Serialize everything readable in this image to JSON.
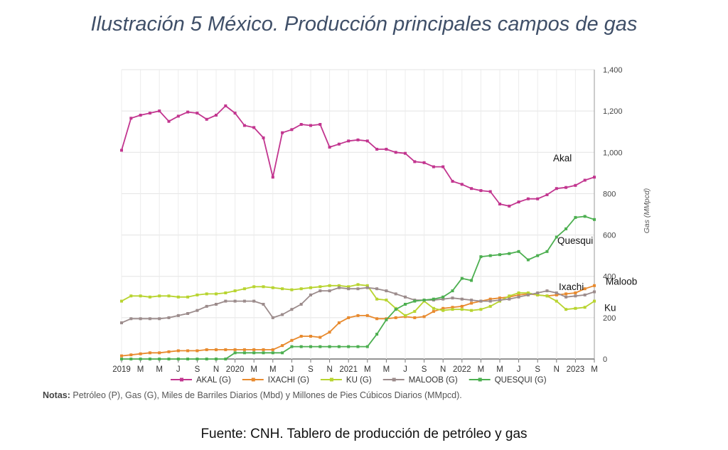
{
  "title": "Ilustración 5 México. Producción principales campos de gas",
  "notes": {
    "label": "Notas:",
    "text": "Petróleo (P), Gas (G), Miles de Barriles Diarios (Mbd) y Millones de Pies Cúbicos Diarios (MMpcd)."
  },
  "source": "Fuente: CNH. Tablero de producción de petróleo y gas",
  "chart_data": {
    "type": "line",
    "title": "Ilustración 5 México. Producción principales campos de gas",
    "xlabel": "",
    "ylabel": "Gas (MMpcd)",
    "ylim": [
      0,
      1400
    ],
    "yticks": [
      0,
      200,
      400,
      600,
      800,
      1000,
      1200,
      1400
    ],
    "ytick_labels": [
      "0",
      "200",
      "400",
      "600",
      "800",
      "1,000",
      "1,200",
      "1,400"
    ],
    "xtick_labels": [
      "2019",
      "M",
      "M",
      "J",
      "S",
      "N",
      "2020",
      "M",
      "M",
      "J",
      "S",
      "N",
      "2021",
      "M",
      "M",
      "J",
      "S",
      "N",
      "2022",
      "M",
      "M",
      "J",
      "S",
      "N",
      "2023",
      "M"
    ],
    "x_start": "2019-01",
    "grid": true,
    "legend_position": "bottom",
    "series": [
      {
        "name": "AKAL (G)",
        "color": "#c2358f",
        "end_label": "Akal",
        "values": [
          1010,
          1165,
          1180,
          1190,
          1200,
          1150,
          1175,
          1195,
          1190,
          1160,
          1180,
          1225,
          1190,
          1130,
          1120,
          1070,
          880,
          1095,
          1110,
          1135,
          1130,
          1135,
          1025,
          1040,
          1055,
          1060,
          1055,
          1015,
          1015,
          1000,
          995,
          955,
          950,
          930,
          930,
          860,
          845,
          825,
          815,
          810,
          750,
          740,
          760,
          775,
          775,
          795,
          825,
          830,
          840,
          865,
          880
        ]
      },
      {
        "name": "IXACHI (G)",
        "color": "#e88a2e",
        "end_label": "Ixachi",
        "values": [
          15,
          20,
          25,
          30,
          30,
          35,
          40,
          40,
          40,
          45,
          45,
          45,
          45,
          45,
          45,
          45,
          45,
          65,
          90,
          110,
          110,
          105,
          130,
          175,
          200,
          210,
          210,
          195,
          195,
          200,
          205,
          200,
          205,
          230,
          245,
          250,
          255,
          270,
          280,
          290,
          295,
          300,
          310,
          315,
          310,
          305,
          310,
          315,
          320,
          340,
          355
        ]
      },
      {
        "name": "KU (G)",
        "color": "#b8d430",
        "end_label": "Ku",
        "values": [
          280,
          305,
          305,
          300,
          305,
          305,
          300,
          300,
          310,
          315,
          315,
          320,
          330,
          340,
          350,
          350,
          345,
          340,
          335,
          340,
          345,
          350,
          355,
          355,
          350,
          360,
          355,
          290,
          285,
          245,
          210,
          230,
          280,
          245,
          235,
          240,
          240,
          235,
          240,
          255,
          280,
          305,
          320,
          320,
          310,
          305,
          280,
          240,
          245,
          250,
          280
        ]
      },
      {
        "name": "MALOOB (G)",
        "color": "#9c8c8c",
        "end_label": "Maloob",
        "values": [
          175,
          195,
          195,
          195,
          195,
          200,
          210,
          220,
          235,
          255,
          265,
          280,
          280,
          280,
          280,
          265,
          200,
          215,
          240,
          265,
          310,
          330,
          330,
          345,
          340,
          340,
          345,
          340,
          330,
          315,
          300,
          285,
          285,
          285,
          290,
          295,
          290,
          285,
          280,
          280,
          285,
          290,
          300,
          310,
          320,
          330,
          320,
          300,
          305,
          310,
          325
        ]
      },
      {
        "name": "QUESQUI (G)",
        "color": "#4caf50",
        "end_label": "Quesqui",
        "values": [
          0,
          0,
          0,
          0,
          0,
          0,
          0,
          0,
          0,
          0,
          0,
          0,
          30,
          30,
          30,
          30,
          30,
          30,
          60,
          60,
          60,
          60,
          60,
          60,
          60,
          60,
          60,
          120,
          190,
          240,
          265,
          280,
          285,
          290,
          300,
          330,
          390,
          380,
          495,
          500,
          505,
          510,
          520,
          480,
          500,
          520,
          590,
          630,
          685,
          690,
          675
        ]
      }
    ]
  }
}
